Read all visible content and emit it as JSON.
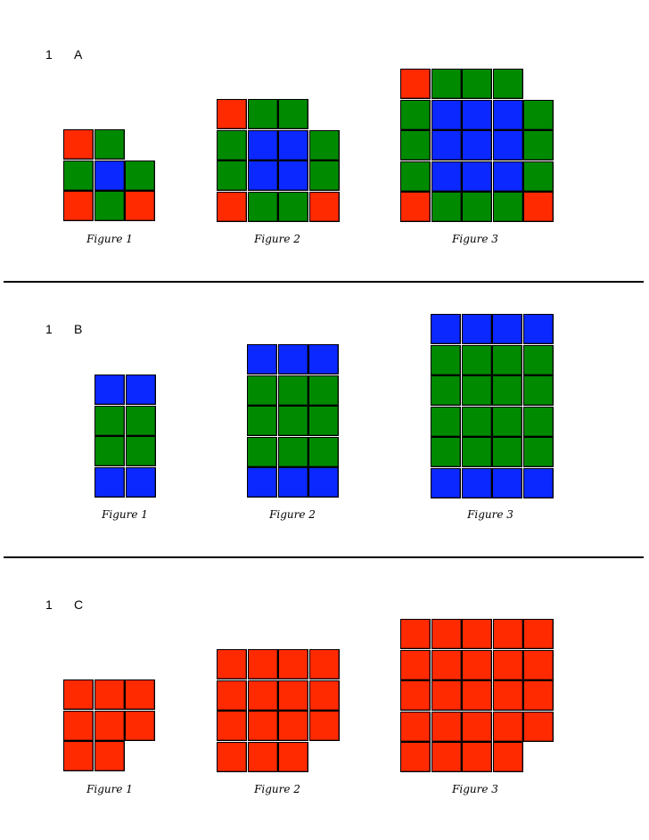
{
  "colors": {
    "R": "#ff2a00",
    "G": "#008a00",
    "B": "#0a28ff"
  },
  "sections": [
    {
      "number": "1",
      "letter": "A",
      "figures": [
        {
          "caption": "Figure 1",
          "rows": [
            "RG ",
            "GBG",
            "RGR"
          ]
        },
        {
          "caption": "Figure 2",
          "rows": [
            "RGG ",
            "GBBG",
            "GBBG",
            "RGGR"
          ]
        },
        {
          "caption": "Figure 3",
          "rows": [
            "RGGG ",
            "GBBBG",
            "GBBBG",
            "GBBBG",
            "RGGGR"
          ]
        }
      ]
    },
    {
      "number": "1",
      "letter": "B",
      "figures": [
        {
          "caption": "Figure 1",
          "rows": [
            "BB",
            "GG",
            "GG",
            "BB"
          ]
        },
        {
          "caption": "Figure 2",
          "rows": [
            "BBB",
            "GGG",
            "GGG",
            "GGG",
            "BBB"
          ]
        },
        {
          "caption": "Figure 3",
          "rows": [
            "BBBB",
            "GGGG",
            "GGGG",
            "GGGG",
            "GGGG",
            "BBBB"
          ]
        }
      ]
    },
    {
      "number": "1",
      "letter": "C",
      "figures": [
        {
          "caption": "Figure 1",
          "rows": [
            "RRR",
            "RRR",
            "RR "
          ]
        },
        {
          "caption": "Figure 2",
          "rows": [
            "RRRR",
            "RRRR",
            "RRRR",
            "RRR "
          ]
        },
        {
          "caption": "Figure 3",
          "rows": [
            "RRRRR",
            "RRRRR",
            "RRRRR",
            "RRRRR",
            "RRRR "
          ]
        }
      ]
    }
  ]
}
